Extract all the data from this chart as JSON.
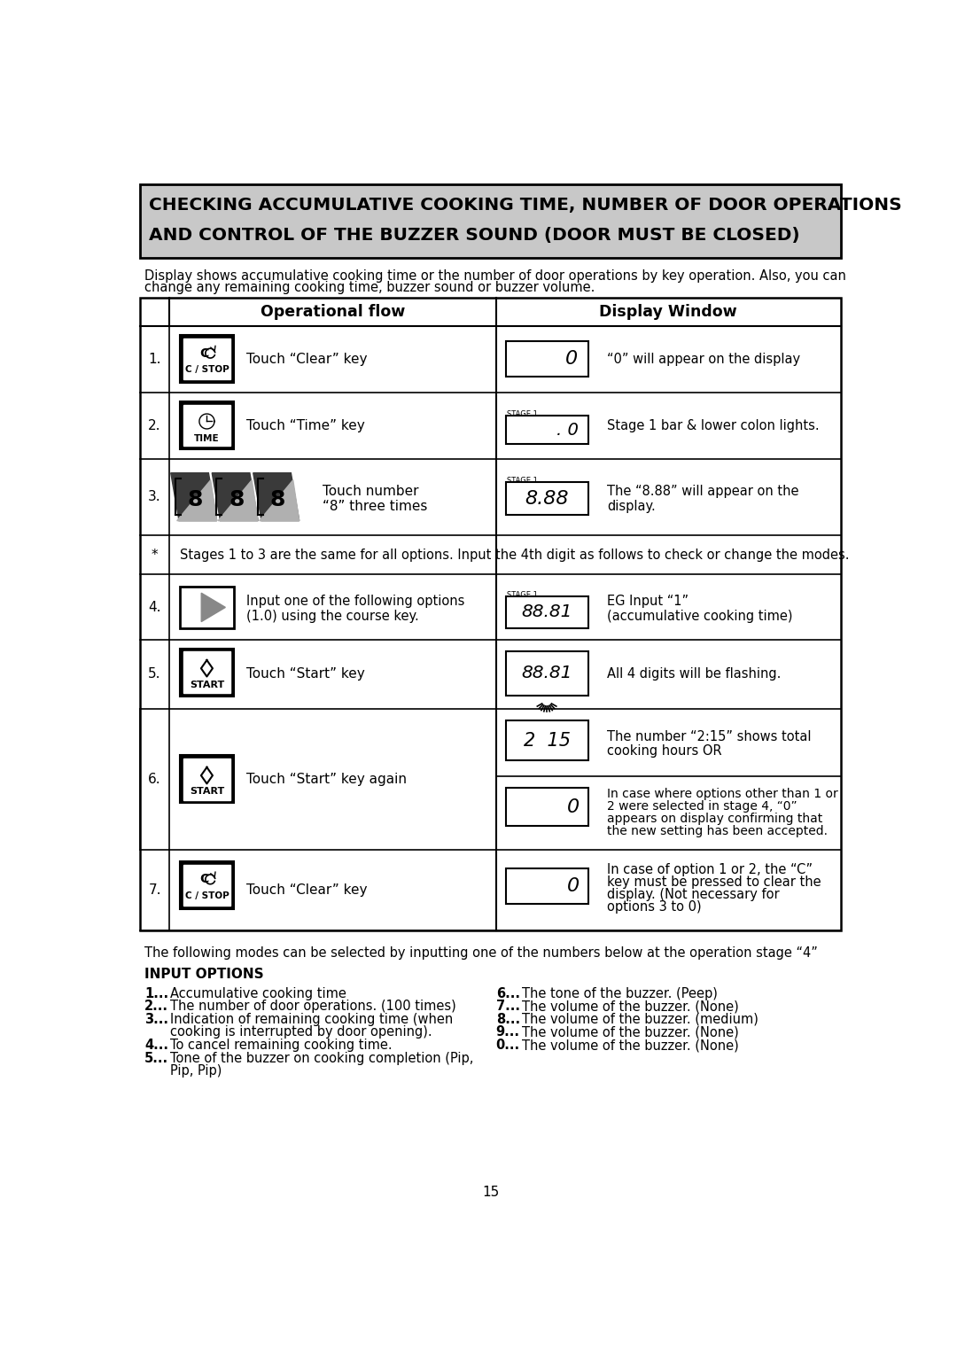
{
  "title_line1": "CHECKING ACCUMULATIVE COOKING TIME, NUMBER OF DOOR OPERATIONS",
  "title_line2": "AND CONTROL OF THE BUZZER SOUND (DOOR MUST BE CLOSED)",
  "intro_text1": "Display shows accumulative cooking time or the number of door operations by key operation. Also, you can",
  "intro_text2": "change any remaining cooking time, buzzer sound or buzzer volume.",
  "col1_header": "Operational flow",
  "col2_header": "Display Window",
  "page_number": "15",
  "footer_text": "The following modes can be selected by inputting one of the numbers below at the operation stage “4”",
  "input_options_title": "INPUT OPTIONS",
  "bg_color": "#ffffff",
  "title_bg": "#c8c8c8"
}
